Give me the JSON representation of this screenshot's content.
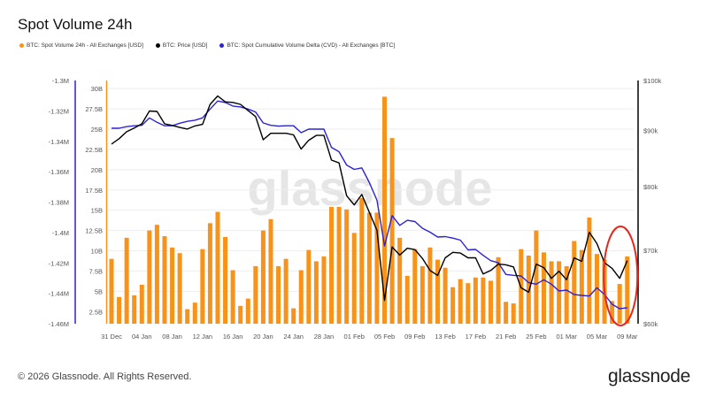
{
  "header": {
    "title": "Spot Volume 24h"
  },
  "footer": {
    "copyright": "© 2026 Glassnode. All Rights Reserved.",
    "logo": "glassnode"
  },
  "watermark": "glassnode",
  "colors": {
    "volume": "#f7931a",
    "price": "#000000",
    "cvd": "#2b22d6",
    "annotation": "#e8261c",
    "grid": "#eeeeee"
  },
  "chart_data": {
    "type": "bar+line",
    "title": "Spot Volume 24h",
    "legend_placement": "top-left",
    "grid": true,
    "x_ticks": [
      "31 Dec",
      "04 Jan",
      "08 Jan",
      "12 Jan",
      "16 Jan",
      "20 Jan",
      "24 Jan",
      "28 Jan",
      "01 Feb",
      "05 Feb",
      "09 Feb",
      "13 Feb",
      "17 Feb",
      "21 Feb",
      "25 Feb",
      "01 Mar",
      "05 Mar",
      "09 Mar"
    ],
    "x_range": [
      "31 Dec",
      "09 Mar"
    ],
    "axes": {
      "volume": {
        "ticks": [
          "30B",
          "27.5B",
          "25B",
          "22.5B",
          "20B",
          "17.5B",
          "15B",
          "12.5B",
          "10B",
          "7.5B",
          "5B",
          "2.5B"
        ],
        "tick_values": [
          30,
          27.5,
          25,
          22.5,
          20,
          17.5,
          15,
          12.5,
          10,
          7.5,
          5,
          2.5
        ],
        "ylim": [
          1,
          31
        ],
        "unit": "B USD",
        "scale": "linear",
        "side": "left-inner"
      },
      "cvd": {
        "ticks": [
          "-1.3M",
          "-1.32M",
          "-1.34M",
          "-1.36M",
          "-1.38M",
          "-1.4M",
          "-1.42M",
          "-1.44M",
          "-1.46M"
        ],
        "tick_values": [
          -1.3,
          -1.32,
          -1.34,
          -1.36,
          -1.38,
          -1.4,
          -1.42,
          -1.44,
          -1.46
        ],
        "ylim": [
          -1.46,
          -1.3
        ],
        "unit": "M BTC",
        "scale": "linear",
        "side": "left-outer"
      },
      "price": {
        "ticks": [
          "$100k",
          "$90k",
          "$80k",
          "$70k",
          "$60k"
        ],
        "tick_values": [
          100,
          90,
          80,
          70,
          60
        ],
        "ylim": [
          60,
          100
        ],
        "unit": "k USD",
        "scale": "log",
        "side": "right"
      }
    },
    "series": [
      {
        "name": "BTC: Spot Volume 24h - All Exchanges [USD]",
        "type": "bar",
        "axis": "volume",
        "values": [
          9.0,
          4.3,
          11.6,
          4.5,
          5.8,
          12.5,
          13.2,
          11.8,
          10.4,
          9.7,
          2.8,
          3.6,
          10.2,
          13.4,
          14.8,
          11.7,
          7.6,
          3.2,
          4.1,
          8.1,
          12.5,
          13.9,
          8.1,
          9.0,
          2.9,
          7.6,
          10.1,
          8.7,
          9.3,
          15.4,
          15.4,
          15.1,
          12.2,
          16.5,
          14.7,
          14.7,
          29.0,
          23.9,
          11.6,
          6.9,
          10.2,
          8.1,
          10.4,
          8.9,
          7.9,
          5.5,
          6.5,
          6.0,
          6.7,
          6.7,
          6.3,
          9.2,
          3.7,
          3.5,
          10.2,
          9.4,
          12.5,
          9.8,
          8.7,
          8.7,
          8.1,
          11.2,
          10.1,
          14.1,
          9.6,
          8.9,
          3.8,
          5.9,
          9.3
        ]
      },
      {
        "name": "BTC: Price [USD]",
        "type": "line",
        "axis": "price",
        "values": [
          87.5,
          88.5,
          89.8,
          90.5,
          91.3,
          93.8,
          93.7,
          91.3,
          91.0,
          90.6,
          90.3,
          90.9,
          91.2,
          95.1,
          96.8,
          95.6,
          95.5,
          95.1,
          93.9,
          92.7,
          88.3,
          89.5,
          89.5,
          89.5,
          89.2,
          86.6,
          88.2,
          89.1,
          89.1,
          84.6,
          84.1,
          78.5,
          77.0,
          78.7,
          75.8,
          73.0,
          63.0,
          70.5,
          69.3,
          70.3,
          70.1,
          68.8,
          67.1,
          66.4,
          68.9,
          69.7,
          69.6,
          68.9,
          68.9,
          66.6,
          67.1,
          68.0,
          67.9,
          67.6,
          64.7,
          64.1,
          68.0,
          67.5,
          66.0,
          67.0,
          65.8,
          68.9,
          68.4,
          72.7,
          71.0,
          68.2,
          67.4,
          66.0,
          68.5
        ]
      },
      {
        "name": "BTC: Spot Cumulative Volume Delta (CVD) - All Exchanges [BTC]",
        "type": "line",
        "axis": "cvd",
        "values": [
          -1.3314,
          -1.3314,
          -1.3304,
          -1.3298,
          -1.3295,
          -1.3246,
          -1.3275,
          -1.3298,
          -1.3298,
          -1.3281,
          -1.3269,
          -1.3261,
          -1.3246,
          -1.3188,
          -1.3135,
          -1.3145,
          -1.3168,
          -1.3174,
          -1.3188,
          -1.3207,
          -1.3279,
          -1.3295,
          -1.33,
          -1.3298,
          -1.3298,
          -1.3343,
          -1.332,
          -1.332,
          -1.332,
          -1.344,
          -1.3469,
          -1.3556,
          -1.3585,
          -1.3575,
          -1.3672,
          -1.3788,
          -1.4088,
          -1.3889,
          -1.3953,
          -1.392,
          -1.3928,
          -1.3972,
          -1.3998,
          -1.403,
          -1.4027,
          -1.4037,
          -1.405,
          -1.4114,
          -1.4111,
          -1.415,
          -1.4185,
          -1.4199,
          -1.4276,
          -1.4282,
          -1.4286,
          -1.433,
          -1.434,
          -1.4311,
          -1.434,
          -1.4385,
          -1.4379,
          -1.4408,
          -1.4414,
          -1.4418,
          -1.4364,
          -1.4408,
          -1.4472,
          -1.4501,
          -1.4495
        ]
      }
    ],
    "annotation": {
      "type": "ellipse",
      "color": "#e8261c",
      "covers": [
        "07 Mar",
        "09 Mar"
      ]
    }
  }
}
